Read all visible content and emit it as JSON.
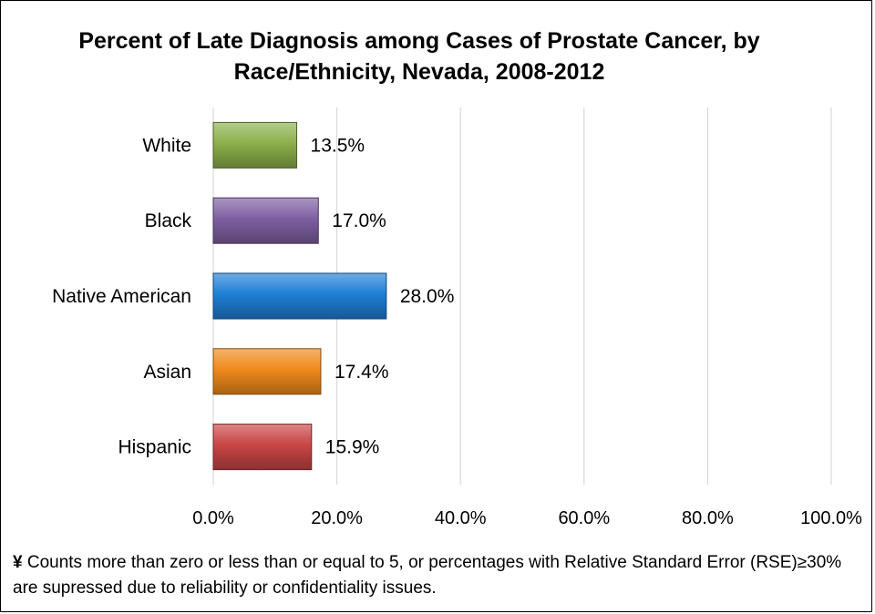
{
  "chart_data": {
    "type": "bar",
    "orientation": "horizontal",
    "title_line1": "Percent of Late Diagnosis among Cases of Prostate Cancer, by",
    "title_line2": "Race/Ethnicity, Nevada, 2008-2012",
    "categories": [
      "White",
      "Black",
      "Native American",
      "Asian",
      "Hispanic"
    ],
    "values": [
      13.5,
      17.0,
      28.0,
      17.4,
      15.9
    ],
    "value_labels": [
      "13.5%",
      "17.0%",
      "28.0%",
      "17.4%",
      "15.9%"
    ],
    "colors": [
      "#8db04b",
      "#7f5fa2",
      "#1f7fd6",
      "#f08a1c",
      "#c94545"
    ],
    "xlim": [
      0,
      100
    ],
    "x_ticks": [
      0,
      20,
      40,
      60,
      80,
      100
    ],
    "x_tick_labels": [
      "0.0%",
      "20.0%",
      "40.0%",
      "60.0%",
      "80.0%",
      "100.0%"
    ],
    "xlabel": "",
    "ylabel": "",
    "grid": "vertical",
    "legend": "none"
  },
  "footnote": {
    "mark": "¥",
    "text": " Counts more than zero or less than or equal to 5, or percentages with Relative Standard Error (RSE)≥30% are supressed due to reliability or confidentiality issues."
  }
}
